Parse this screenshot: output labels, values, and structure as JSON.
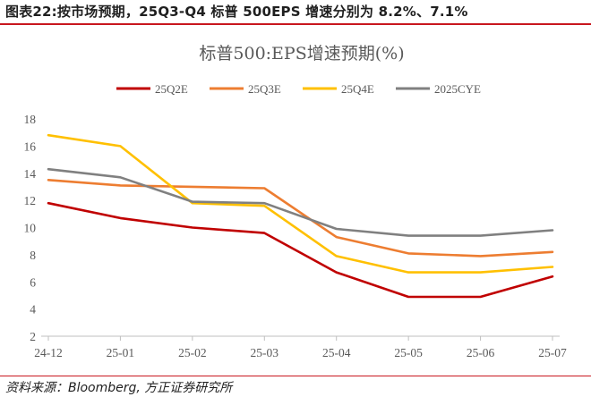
{
  "figure_title": "图表22:按市场预期，25Q3-Q4 标普 500EPS 增速分别为 8.2%、7.1%",
  "source_note": "资料来源：Bloomberg, 方正证券研究所",
  "chart_data": {
    "type": "line",
    "title": "标普500:EPS增速预期(%)",
    "xlabel": "",
    "ylabel": "",
    "categories": [
      "24-12",
      "25-01",
      "25-02",
      "25-03",
      "25-04",
      "25-05",
      "25-06",
      "25-07"
    ],
    "ylim": [
      2,
      18
    ],
    "yticks": [
      2,
      4,
      6,
      8,
      10,
      12,
      14,
      16,
      18
    ],
    "grid": false,
    "legend_position": "top",
    "series": [
      {
        "name": "25Q2E",
        "color": "#c00000",
        "values": [
          11.8,
          10.7,
          10.0,
          9.6,
          6.7,
          4.9,
          4.9,
          6.4
        ]
      },
      {
        "name": "25Q3E",
        "color": "#ed7d31",
        "values": [
          13.5,
          13.1,
          13.0,
          12.9,
          9.3,
          8.1,
          7.9,
          8.2
        ]
      },
      {
        "name": "25Q4E",
        "color": "#ffc000",
        "values": [
          16.8,
          16.0,
          11.8,
          11.6,
          7.9,
          6.7,
          6.7,
          7.1
        ]
      },
      {
        "name": "2025CYE",
        "color": "#808080",
        "values": [
          14.3,
          13.7,
          11.9,
          11.8,
          9.9,
          9.4,
          9.4,
          9.8
        ]
      }
    ]
  }
}
